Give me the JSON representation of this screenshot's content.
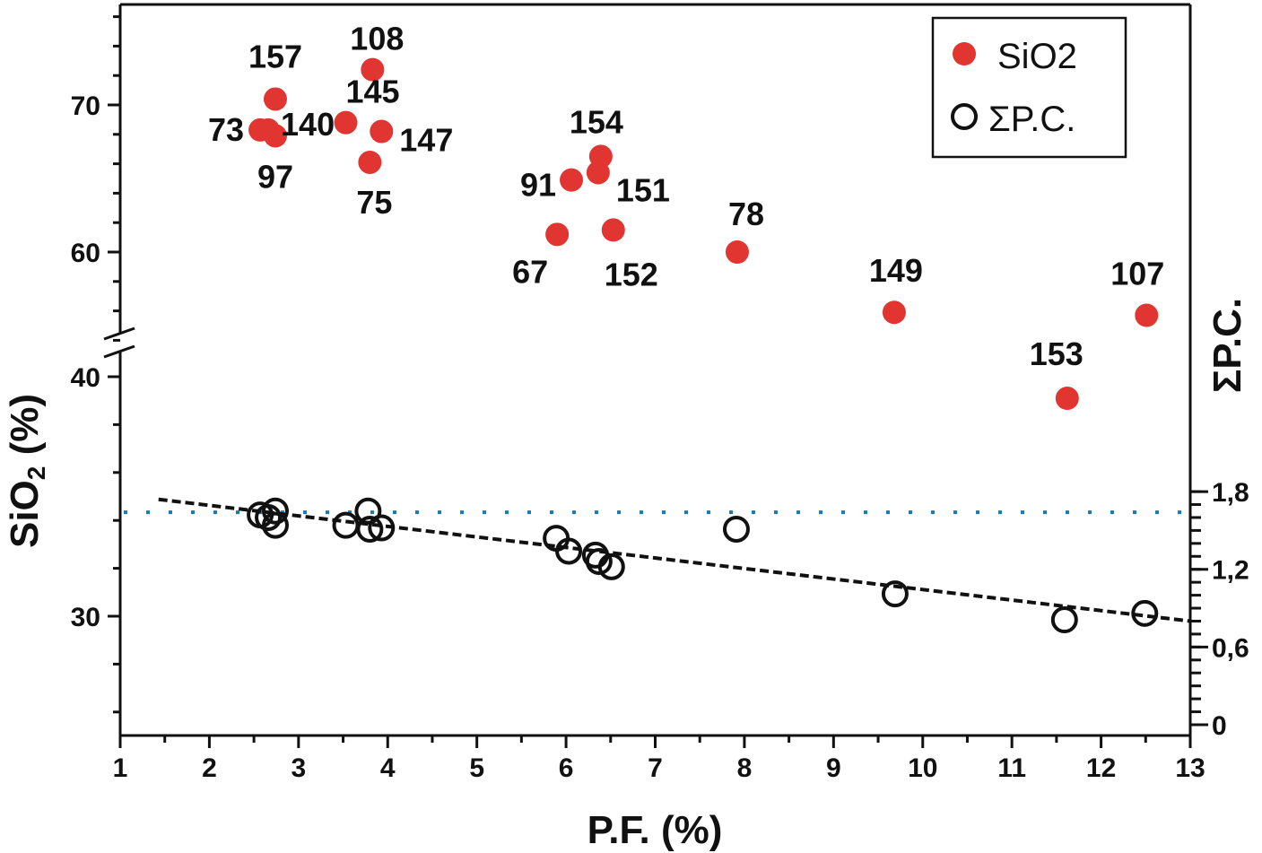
{
  "chart_data": {
    "type": "scatter",
    "xlabel": "P.F. (%)",
    "ylabel": "SiO2 (%)",
    "y2label": "ΣP.C.",
    "xlim": [
      1,
      13
    ],
    "xticks": [
      1,
      2,
      3,
      4,
      5,
      6,
      7,
      8,
      9,
      10,
      11,
      12,
      13
    ],
    "ylim_upper": [
      53.8,
      76.8
    ],
    "ylim_lower": [
      25,
      41.4
    ],
    "y_axis_break": true,
    "yticks": [
      30,
      40,
      60,
      70
    ],
    "y2lim": [
      0,
      1.8
    ],
    "y2ticks": [
      "0",
      "0,6",
      "1,2",
      "1,8"
    ],
    "y2tick_values": [
      0,
      0.6,
      1.2,
      1.8
    ],
    "grid": false,
    "legend_position": "top-right",
    "colors": {
      "sio2": "#e03530",
      "pc": "#111111",
      "reference_line": "#1a7ab8"
    },
    "series": [
      {
        "name": "SiO2",
        "marker": "filled-circle",
        "axis": "left",
        "points": [
          {
            "label": "157",
            "x": 2.74,
            "y": 70.4
          },
          {
            "label": "73",
            "x": 2.57,
            "y": 68.3
          },
          {
            "label": "140",
            "x": 2.66,
            "y": 68.3
          },
          {
            "label": "97",
            "x": 2.74,
            "y": 67.9
          },
          {
            "label": "108",
            "x": 3.83,
            "y": 72.4
          },
          {
            "label": "145",
            "x": 3.53,
            "y": 68.8
          },
          {
            "label": "147",
            "x": 3.93,
            "y": 68.2
          },
          {
            "label": "75",
            "x": 3.8,
            "y": 66.1
          },
          {
            "label": "154",
            "x": 6.39,
            "y": 66.5
          },
          {
            "label": "91",
            "x": 6.06,
            "y": 64.9
          },
          {
            "label": "151",
            "x": 6.36,
            "y": 65.4
          },
          {
            "label": "67",
            "x": 5.9,
            "y": 61.2
          },
          {
            "label": "152",
            "x": 6.53,
            "y": 61.5
          },
          {
            "label": "78",
            "x": 7.92,
            "y": 60.0
          },
          {
            "label": "149",
            "x": 9.68,
            "y": 55.9
          },
          {
            "label": "107",
            "x": 12.51,
            "y": 55.7
          },
          {
            "label": "153",
            "x": 11.62,
            "y": 39.1
          }
        ]
      },
      {
        "name": "ΣP.C.",
        "marker": "open-circle",
        "axis": "right",
        "points": [
          {
            "x": 2.57,
            "y": 1.62
          },
          {
            "x": 2.74,
            "y": 1.65
          },
          {
            "x": 2.74,
            "y": 1.54
          },
          {
            "x": 2.66,
            "y": 1.6
          },
          {
            "x": 3.53,
            "y": 1.54
          },
          {
            "x": 3.78,
            "y": 1.65
          },
          {
            "x": 3.8,
            "y": 1.51
          },
          {
            "x": 3.93,
            "y": 1.52
          },
          {
            "x": 5.89,
            "y": 1.44
          },
          {
            "x": 6.03,
            "y": 1.34
          },
          {
            "x": 6.33,
            "y": 1.31
          },
          {
            "x": 6.37,
            "y": 1.26
          },
          {
            "x": 6.51,
            "y": 1.22
          },
          {
            "x": 7.91,
            "y": 1.51
          },
          {
            "x": 9.69,
            "y": 1.01
          },
          {
            "x": 11.59,
            "y": 0.81
          },
          {
            "x": 12.49,
            "y": 0.86
          }
        ]
      }
    ],
    "trend_line": {
      "style": "dashed",
      "axis": "right",
      "from": {
        "x": 1.43,
        "y": 1.74
      },
      "to": {
        "x": 13,
        "y": 0.8
      }
    },
    "reference_line": {
      "style": "dotted",
      "axis": "right",
      "y": 1.64
    }
  }
}
